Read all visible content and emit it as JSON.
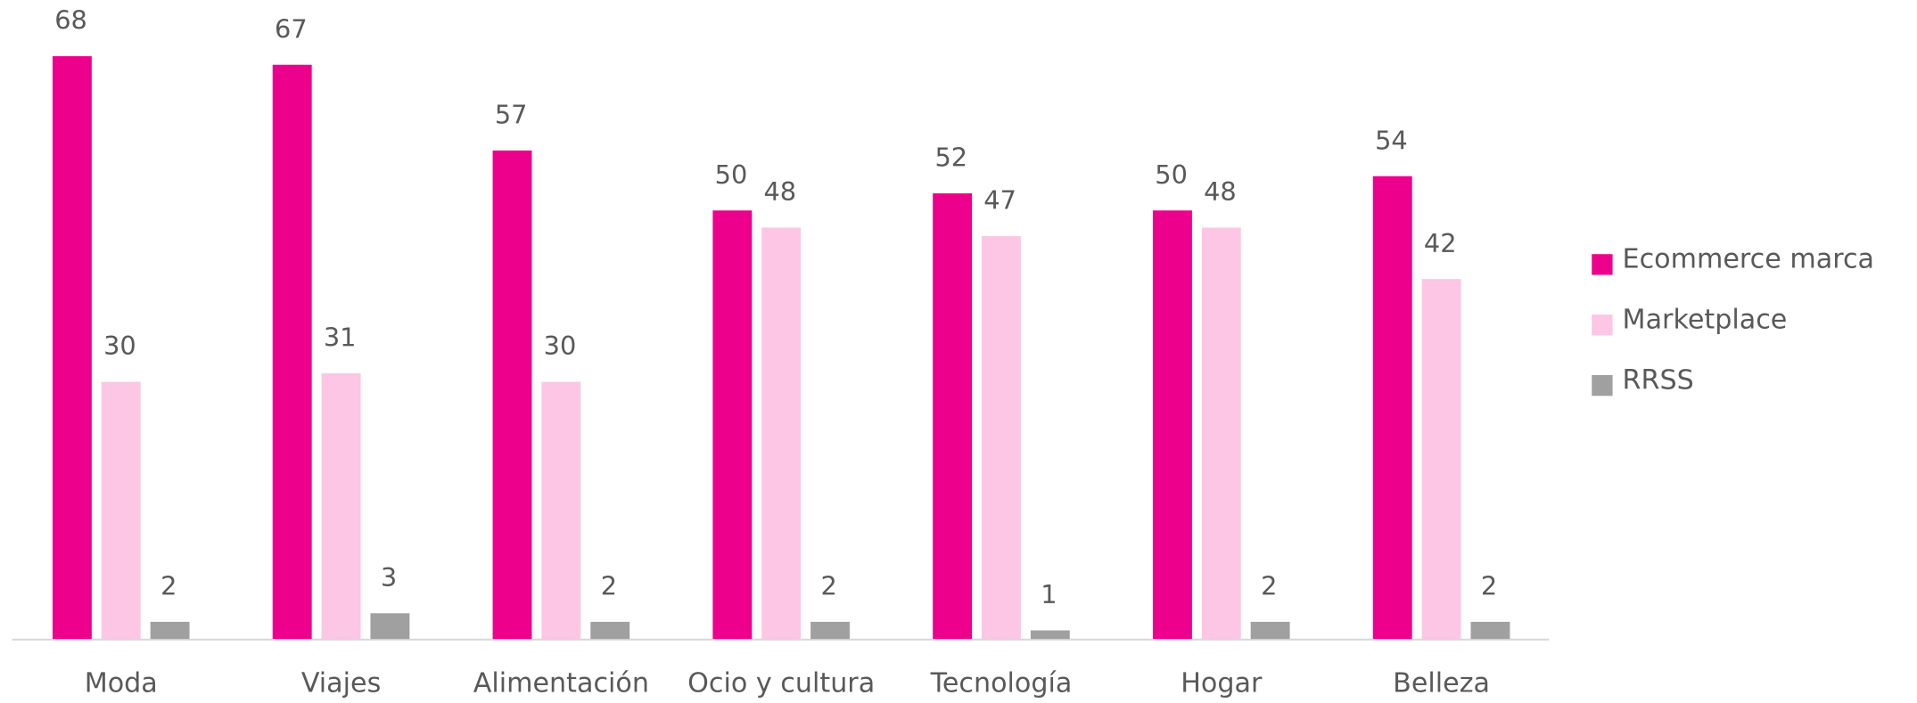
{
  "chart_data": {
    "type": "bar",
    "categories": [
      "Moda",
      "Viajes",
      "Alimentación",
      "Ocio y cultura",
      "Tecnología",
      "Hogar",
      "Belleza"
    ],
    "series": [
      {
        "name": "Ecommerce marca",
        "color": "#ec008c",
        "values": [
          68,
          67,
          57,
          50,
          52,
          50,
          54
        ]
      },
      {
        "name": "Marketplace",
        "color": "#fcc6e4",
        "values": [
          30,
          31,
          30,
          48,
          47,
          48,
          42
        ]
      },
      {
        "name": "RRSS",
        "color": "#a0a0a0",
        "values": [
          2,
          3,
          2,
          2,
          1,
          2,
          2
        ]
      }
    ],
    "ylim": [
      0,
      68
    ],
    "legend": "right"
  }
}
